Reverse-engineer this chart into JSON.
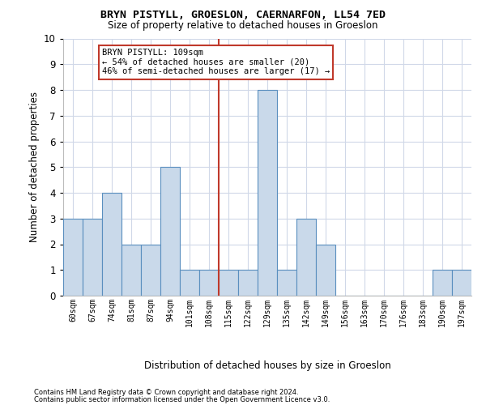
{
  "title": "BRYN PISTYLL, GROESLON, CAERNARFON, LL54 7ED",
  "subtitle": "Size of property relative to detached houses in Groeslon",
  "xlabel": "Distribution of detached houses by size in Groeslon",
  "ylabel": "Number of detached properties",
  "footnote1": "Contains HM Land Registry data © Crown copyright and database right 2024.",
  "footnote2": "Contains public sector information licensed under the Open Government Licence v3.0.",
  "annotation_line1": "BRYN PISTYLL: 109sqm",
  "annotation_line2": "← 54% of detached houses are smaller (20)",
  "annotation_line3": "46% of semi-detached houses are larger (17) →",
  "categories": [
    "60sqm",
    "67sqm",
    "74sqm",
    "81sqm",
    "87sqm",
    "94sqm",
    "101sqm",
    "108sqm",
    "115sqm",
    "122sqm",
    "129sqm",
    "135sqm",
    "142sqm",
    "149sqm",
    "156sqm",
    "163sqm",
    "170sqm",
    "176sqm",
    "183sqm",
    "190sqm",
    "197sqm"
  ],
  "values": [
    3,
    3,
    4,
    2,
    2,
    5,
    1,
    1,
    1,
    1,
    8,
    1,
    3,
    2,
    0,
    0,
    0,
    0,
    0,
    1,
    1
  ],
  "bar_color": "#c9d9ea",
  "bar_edge_color": "#5a8fbf",
  "property_line_index": 7,
  "property_line_color": "#c0392b",
  "annotation_box_color": "#c0392b",
  "background_color": "#ffffff",
  "grid_color": "#d0d8e8",
  "ylim": [
    0,
    10
  ],
  "yticks": [
    0,
    1,
    2,
    3,
    4,
    5,
    6,
    7,
    8,
    9,
    10
  ]
}
